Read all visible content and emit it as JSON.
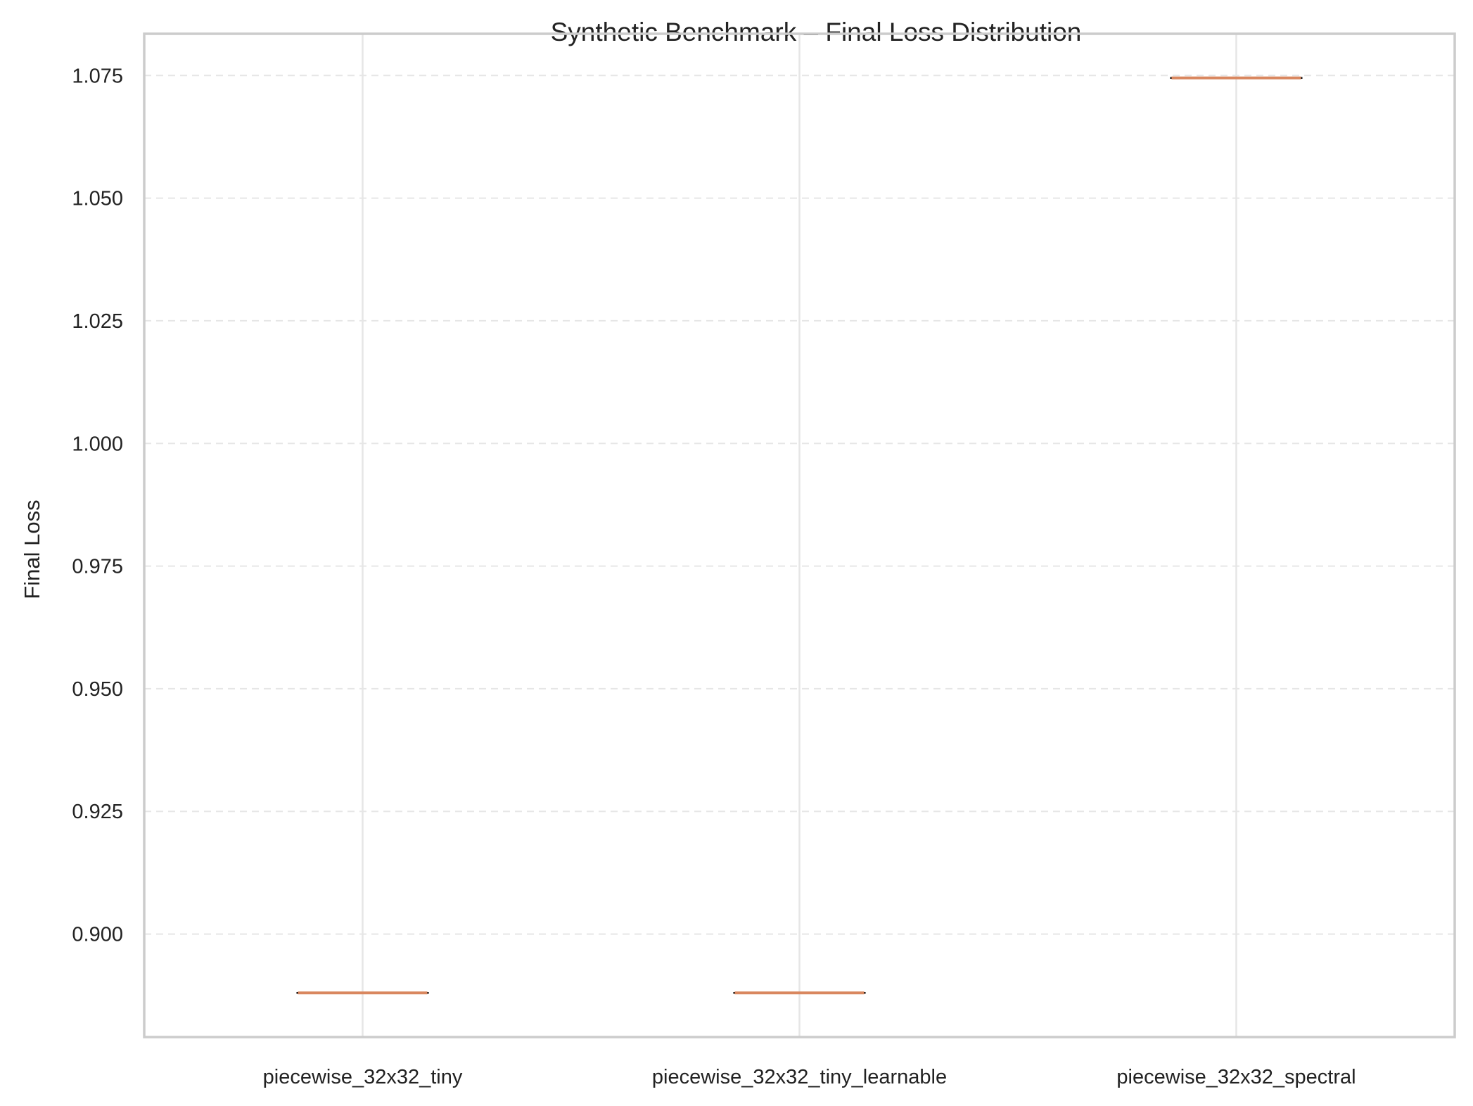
{
  "chart_data": {
    "type": "box",
    "title": "Synthetic Benchmark – Final Loss Distribution",
    "xlabel": "",
    "ylabel": "Final Loss",
    "categories": [
      "piecewise_32x32_tiny",
      "piecewise_32x32_tiny_learnable",
      "piecewise_32x32_spectral"
    ],
    "values": [
      0.888,
      0.888,
      1.0745
    ],
    "ylim": [
      0.879,
      1.0835
    ],
    "yticks": [
      "0.900",
      "0.925",
      "0.950",
      "0.975",
      "1.000",
      "1.025",
      "1.050",
      "1.075"
    ],
    "ytick_values": [
      0.9,
      0.925,
      0.95,
      0.975,
      1.0,
      1.025,
      1.05,
      1.075
    ],
    "grid": true,
    "colors": {
      "median": "#d9875f",
      "whisker": "#000000",
      "grid": "#e6e6e6",
      "frame": "#cccccc"
    }
  }
}
